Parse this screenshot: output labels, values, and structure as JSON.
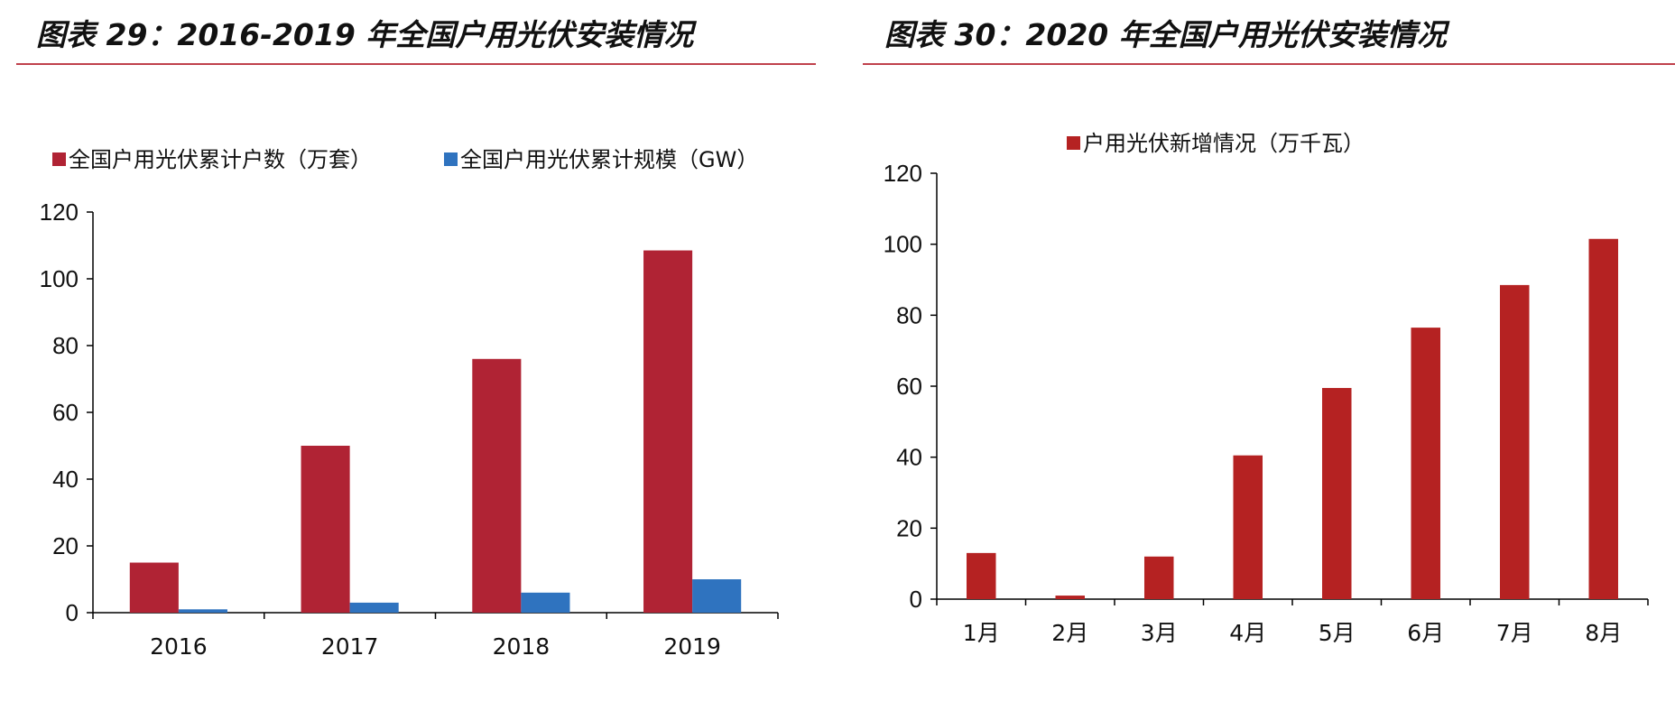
{
  "figures": [
    {
      "title": "图表 29：2016-2019 年全国户用光伏安装情况",
      "accent_color": "#c0414b"
    },
    {
      "title": "图表 30：2020 年全国户用光伏安装情况",
      "accent_color": "#c0414b"
    }
  ],
  "chart_data": [
    {
      "type": "bar",
      "title": "",
      "xlabel": "",
      "ylabel": "",
      "categories": [
        "2016",
        "2017",
        "2018",
        "2019"
      ],
      "ylim": [
        0,
        120
      ],
      "yticks": [
        0,
        20,
        40,
        60,
        80,
        100,
        120
      ],
      "legend_position": "top",
      "grid": false,
      "series": [
        {
          "name": "全国户用光伏累计户数（万套）",
          "color": "#b02334",
          "values": [
            15,
            50,
            76,
            108.5
          ]
        },
        {
          "name": "全国户用光伏累计规模（GW）",
          "color": "#2f73bf",
          "values": [
            1,
            3,
            6,
            10
          ]
        }
      ]
    },
    {
      "type": "bar",
      "title": "",
      "xlabel": "",
      "ylabel": "",
      "categories": [
        "1月",
        "2月",
        "3月",
        "4月",
        "5月",
        "6月",
        "7月",
        "8月"
      ],
      "ylim": [
        0,
        120
      ],
      "yticks": [
        0,
        20,
        40,
        60,
        80,
        100,
        120
      ],
      "legend_position": "top",
      "grid": false,
      "series": [
        {
          "name": "户用光伏新增情况（万千瓦）",
          "color": "#b52222",
          "values": [
            13,
            1,
            12,
            40.5,
            59.5,
            76.5,
            88.5,
            101.5
          ]
        }
      ]
    }
  ]
}
